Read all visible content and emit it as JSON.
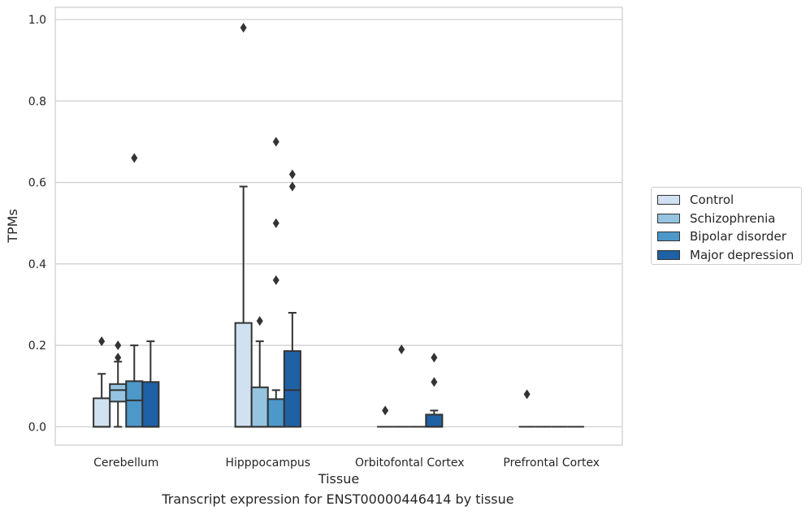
{
  "chart_data": {
    "type": "box",
    "title": "Transcript expression for ENST00000446414 by tissue",
    "xlabel": "Tissue",
    "ylabel": "TPMs",
    "ylim": [
      -0.045,
      1.03
    ],
    "yticks": [
      "0.0",
      "0.2",
      "0.4",
      "0.6",
      "0.8",
      "1.0"
    ],
    "grid": "horizontal",
    "legend_placement": "right",
    "categories": [
      "Cerebellum",
      "Hipppocampus",
      "Orbitofontal Cortex",
      "Prefrontal Cortex"
    ],
    "series": [
      {
        "name": "Control",
        "color": "#d0e1f1",
        "boxes": [
          {
            "q1": 0.0,
            "median": 0.0,
            "q3": 0.07,
            "whisker_low": 0.0,
            "whisker_high": 0.13,
            "outliers": [
              0.21
            ]
          },
          {
            "q1": 0.0,
            "median": 0.0,
            "q3": 0.255,
            "whisker_low": 0.0,
            "whisker_high": 0.59,
            "outliers": [
              0.98
            ]
          },
          {
            "q1": 0.0,
            "median": 0.0,
            "q3": 0.0,
            "whisker_low": 0.0,
            "whisker_high": 0.0,
            "outliers": [
              0.04
            ]
          },
          {
            "q1": 0.0,
            "median": 0.0,
            "q3": 0.0,
            "whisker_low": 0.0,
            "whisker_high": 0.0,
            "outliers": [
              0.08
            ]
          }
        ]
      },
      {
        "name": "Schizophrenia",
        "color": "#94c4df",
        "boxes": [
          {
            "q1": 0.062,
            "median": 0.09,
            "q3": 0.105,
            "whisker_low": 0.0,
            "whisker_high": 0.16,
            "outliers": [
              0.17,
              0.2
            ]
          },
          {
            "q1": 0.0,
            "median": 0.0,
            "q3": 0.097,
            "whisker_low": 0.0,
            "whisker_high": 0.21,
            "outliers": [
              0.26
            ]
          },
          {
            "q1": 0.0,
            "median": 0.0,
            "q3": 0.0,
            "whisker_low": 0.0,
            "whisker_high": 0.0,
            "outliers": [
              0.19
            ]
          },
          {
            "q1": 0.0,
            "median": 0.0,
            "q3": 0.0,
            "whisker_low": 0.0,
            "whisker_high": 0.0,
            "outliers": []
          }
        ]
      },
      {
        "name": "Bipolar disorder",
        "color": "#4b98c9",
        "boxes": [
          {
            "q1": 0.0,
            "median": 0.065,
            "q3": 0.112,
            "whisker_low": 0.0,
            "whisker_high": 0.2,
            "outliers": [
              0.66
            ]
          },
          {
            "q1": 0.0,
            "median": 0.0,
            "q3": 0.068,
            "whisker_low": 0.0,
            "whisker_high": 0.09,
            "outliers": [
              0.36,
              0.5,
              0.7
            ]
          },
          {
            "q1": 0.0,
            "median": 0.0,
            "q3": 0.0,
            "whisker_low": 0.0,
            "whisker_high": 0.0,
            "outliers": []
          },
          {
            "q1": 0.0,
            "median": 0.0,
            "q3": 0.0,
            "whisker_low": 0.0,
            "whisker_high": 0.0,
            "outliers": []
          }
        ]
      },
      {
        "name": "Major depression",
        "color": "#1f61a5",
        "boxes": [
          {
            "q1": 0.0,
            "median": 0.0,
            "q3": 0.11,
            "whisker_low": 0.0,
            "whisker_high": 0.21,
            "outliers": []
          },
          {
            "q1": 0.0,
            "median": 0.09,
            "q3": 0.186,
            "whisker_low": 0.0,
            "whisker_high": 0.28,
            "outliers": [
              0.59,
              0.62
            ]
          },
          {
            "q1": 0.0,
            "median": 0.0,
            "q3": 0.03,
            "whisker_low": 0.0,
            "whisker_high": 0.04,
            "outliers": [
              0.11,
              0.17
            ]
          },
          {
            "q1": 0.0,
            "median": 0.0,
            "q3": 0.0,
            "whisker_low": 0.0,
            "whisker_high": 0.0,
            "outliers": []
          }
        ]
      }
    ]
  }
}
